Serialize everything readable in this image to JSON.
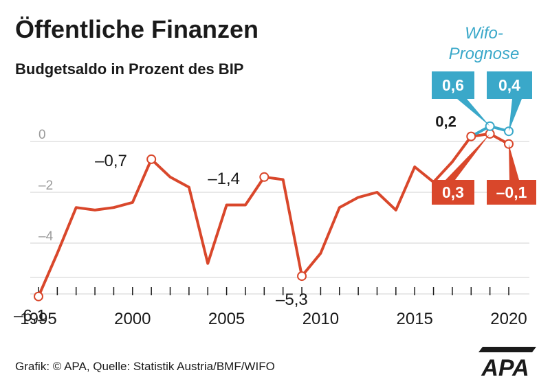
{
  "title": "Öffentliche Finanzen",
  "subtitle": "Budgetsaldo in Prozent des BIP",
  "footer": "Grafik: © APA, Quelle: Statistik Austria/BMF/WIFO",
  "logo_text": "APA",
  "colors": {
    "actual": "#d9472b",
    "forecast": "#3aa8c9",
    "grid": "#d0d0d0",
    "axis": "#1a1a1a",
    "ytick": "#9a9a9a"
  },
  "chart_data": {
    "type": "line",
    "xlim": [
      1995,
      2020
    ],
    "ylim": [
      -7,
      1
    ],
    "y_ticks": [
      0,
      -2,
      -4
    ],
    "y_tick_labels": [
      "0",
      "–2",
      "–4"
    ],
    "x_tick_labels": [
      {
        "x": 1995,
        "label": "1995"
      },
      {
        "x": 2000,
        "label": "2000"
      },
      {
        "x": 2005,
        "label": "2005"
      },
      {
        "x": 2010,
        "label": "2010"
      },
      {
        "x": 2015,
        "label": "2015"
      },
      {
        "x": 2020,
        "label": "2020"
      }
    ],
    "grid": true,
    "series": [
      {
        "x": [
          1995,
          1996,
          1997,
          1998,
          1999,
          2000,
          2001,
          2002,
          2003,
          2004,
          2005,
          2006,
          2007,
          2008,
          2009,
          2010,
          2011,
          2012,
          2013,
          2014,
          2015,
          2016,
          2017,
          2018,
          2019,
          2020
        ],
        "values": [
          -6.1,
          -4.4,
          -2.6,
          -2.7,
          -2.6,
          -2.4,
          -0.7,
          -1.4,
          -1.8,
          -4.8,
          -2.5,
          -2.5,
          -1.4,
          -1.5,
          -5.3,
          -4.4,
          -2.6,
          -2.2,
          -2.0,
          -2.7,
          -1.0,
          -1.6,
          -0.8,
          0.2,
          0.3,
          -0.1
        ]
      },
      {
        "name": "Wifo-Prognose",
        "x": [
          2019,
          2020
        ],
        "values": [
          0.6,
          0.4
        ]
      }
    ],
    "annotations": [
      {
        "x": 1995,
        "y": -6.1,
        "label": "–6,1",
        "style": "plain"
      },
      {
        "x": 2001,
        "y": -0.7,
        "label": "–0,7",
        "style": "plain"
      },
      {
        "x": 2007,
        "y": -1.4,
        "label": "–1,4",
        "style": "plain"
      },
      {
        "x": 2009,
        "y": -5.3,
        "label": "–5,3",
        "style": "plain"
      },
      {
        "x": 2018,
        "y": 0.2,
        "label": "0,2",
        "style": "bold"
      },
      {
        "x": 2019,
        "y": 0.3,
        "label": "0,3",
        "style": "red-box"
      },
      {
        "x": 2020,
        "y": -0.1,
        "label": "–0,1",
        "style": "red-box"
      },
      {
        "x": 2019,
        "y": 0.6,
        "label": "0,6",
        "style": "blue-box"
      },
      {
        "x": 2020,
        "y": 0.4,
        "label": "0,4",
        "style": "blue-box"
      }
    ],
    "forecast_label": [
      "Wifo-",
      "Prognose"
    ]
  }
}
